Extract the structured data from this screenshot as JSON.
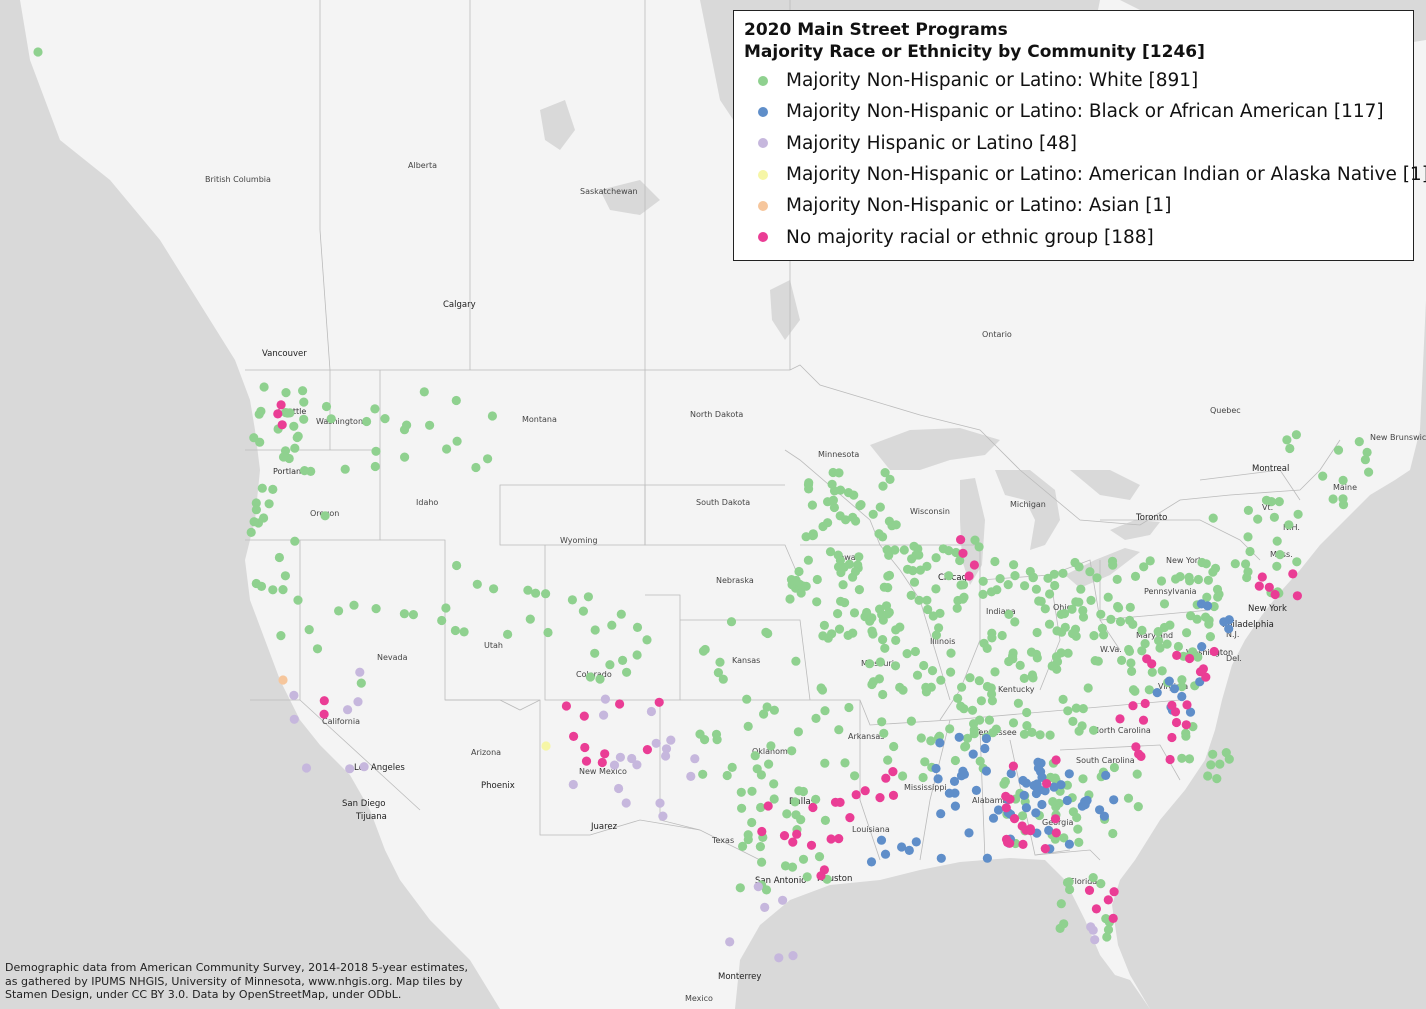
{
  "legend": {
    "title": "2020 Main Street Programs",
    "subtitle": "Majority Race or Ethnicity by Community [1246]",
    "items": [
      {
        "label": "Majority Non-Hispanic or Latino: White [891]",
        "color": "#8fd18f"
      },
      {
        "label": "Majority Non-Hispanic or Latino: Black or African American [117]",
        "color": "#5f8ec9"
      },
      {
        "label": "Majority Hispanic or Latino [48]",
        "color": "#c6b7dd"
      },
      {
        "label": "Majority Non-Hispanic or Latino: American Indian or Alaska Native [1]",
        "color": "#f6f6a6"
      },
      {
        "label": "Majority Non-Hispanic or Latino: Asian [1]",
        "color": "#f6c69c"
      },
      {
        "label": "No majority racial or ethnic group [188]",
        "color": "#ea3d95"
      }
    ]
  },
  "attribution": "Demographic data from American Community Survey, 2014-2018 5-year estimates, as gathered by IPUMS NHGIS, University of Minnesota, www.nhgis.org. Map tiles by Stamen Design, under CC BY 3.0. Data by OpenStreetMap, under ODbL.",
  "labels": {
    "regions": [
      "British Columbia",
      "Alberta",
      "Saskatchewan",
      "Ontario",
      "Quebec",
      "New Brunswick",
      "Washington",
      "Montana",
      "North Dakota",
      "Minnesota",
      "Oregon",
      "Idaho",
      "Wyoming",
      "South Dakota",
      "Wisconsin",
      "Michigan",
      "Nevada",
      "Utah",
      "Colorado",
      "Nebraska",
      "Iowa",
      "Illinois",
      "Indiana",
      "Ohio",
      "Pennsylvania",
      "New York",
      "California",
      "Arizona",
      "New Mexico",
      "Kansas",
      "Missouri",
      "Kentucky",
      "W.Va.",
      "Virginia",
      "Maryland",
      "Del.",
      "N.J.",
      "Mass.",
      "Vt.",
      "N.H.",
      "Maine",
      "Oklahoma",
      "Arkansas",
      "Tennessee",
      "North Carolina",
      "South Carolina",
      "Texas",
      "Louisiana",
      "Mississippi",
      "Alabama",
      "Georgia",
      "Florida",
      "Mexico"
    ],
    "cities": [
      "Vancouver",
      "Seattle",
      "Portland",
      "Calgary",
      "Chicago",
      "Toronto",
      "Montreal",
      "Philadelphia",
      "New York",
      "Washington",
      "Dallas",
      "Houston",
      "San Antonio",
      "Phoenix",
      "Los Angeles",
      "San Diego",
      "Tijuana",
      "Juarez",
      "Monterrey"
    ]
  }
}
